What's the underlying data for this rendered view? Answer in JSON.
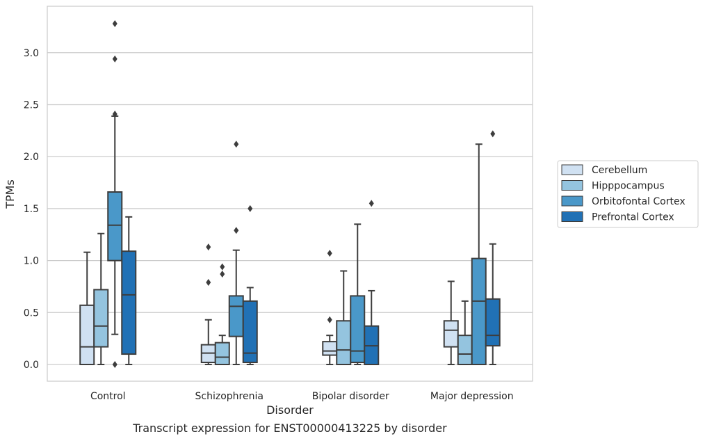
{
  "caption": "Transcript expression for ENST00000413225 by disorder",
  "chart_data": {
    "type": "box",
    "xlabel": "Disorder",
    "ylabel": "TPMs",
    "ylim": [
      -0.16,
      3.46
    ],
    "yticks": [
      0.0,
      0.5,
      1.0,
      1.5,
      2.0,
      2.5,
      3.0
    ],
    "ytick_labels": [
      "0.0",
      "0.5",
      "1.0",
      "1.5",
      "2.0",
      "2.5",
      "3.0"
    ],
    "grid": "horizontal",
    "legend_position": "right",
    "categories": [
      "Control",
      "Schizophrenia",
      "Bipolar disorder",
      "Major depression"
    ],
    "series": [
      {
        "name": "Cerebellum",
        "color": "#d0e1f2",
        "boxes": [
          {
            "whislo": 0.0,
            "q1": 0.0,
            "med": 0.17,
            "q3": 0.57,
            "whishi": 1.08,
            "fliers": []
          },
          {
            "whislo": 0.0,
            "q1": 0.02,
            "med": 0.11,
            "q3": 0.19,
            "whishi": 0.43,
            "fliers": [
              0.79,
              1.13
            ]
          },
          {
            "whislo": 0.0,
            "q1": 0.09,
            "med": 0.13,
            "q3": 0.22,
            "whishi": 0.28,
            "fliers": [
              0.43,
              1.07
            ]
          },
          {
            "whislo": 0.0,
            "q1": 0.17,
            "med": 0.33,
            "q3": 0.42,
            "whishi": 0.8,
            "fliers": []
          }
        ]
      },
      {
        "name": "Hipppocampus",
        "color": "#94c4df",
        "boxes": [
          {
            "whislo": 0.0,
            "q1": 0.17,
            "med": 0.37,
            "q3": 0.72,
            "whishi": 1.26,
            "fliers": []
          },
          {
            "whislo": 0.0,
            "q1": 0.0,
            "med": 0.07,
            "q3": 0.21,
            "whishi": 0.28,
            "fliers": [
              0.87,
              0.94
            ]
          },
          {
            "whislo": 0.0,
            "q1": 0.0,
            "med": 0.14,
            "q3": 0.42,
            "whishi": 0.9,
            "fliers": []
          },
          {
            "whislo": 0.0,
            "q1": 0.0,
            "med": 0.1,
            "q3": 0.28,
            "whishi": 0.61,
            "fliers": []
          }
        ]
      },
      {
        "name": "Orbitofontal Cortex",
        "color": "#4a98c9",
        "boxes": [
          {
            "whislo": 0.29,
            "q1": 1.0,
            "med": 1.34,
            "q3": 1.66,
            "whishi": 2.39,
            "fliers": [
              0.0,
              2.41,
              2.94,
              3.28
            ]
          },
          {
            "whislo": 0.0,
            "q1": 0.27,
            "med": 0.56,
            "q3": 0.66,
            "whishi": 1.1,
            "fliers": [
              1.29,
              2.12
            ]
          },
          {
            "whislo": 0.0,
            "q1": 0.02,
            "med": 0.13,
            "q3": 0.66,
            "whishi": 1.35,
            "fliers": []
          },
          {
            "whislo": 0.0,
            "q1": 0.0,
            "med": 0.61,
            "q3": 1.02,
            "whishi": 2.12,
            "fliers": []
          }
        ]
      },
      {
        "name": "Prefrontal Cortex",
        "color": "#2171b5",
        "boxes": [
          {
            "whislo": 0.0,
            "q1": 0.1,
            "med": 0.67,
            "q3": 1.09,
            "whishi": 1.42,
            "fliers": []
          },
          {
            "whislo": 0.0,
            "q1": 0.02,
            "med": 0.11,
            "q3": 0.61,
            "whishi": 0.74,
            "fliers": [
              1.5
            ]
          },
          {
            "whislo": 0.0,
            "q1": 0.0,
            "med": 0.18,
            "q3": 0.37,
            "whishi": 0.71,
            "fliers": [
              1.55
            ]
          },
          {
            "whislo": 0.0,
            "q1": 0.18,
            "med": 0.28,
            "q3": 0.63,
            "whishi": 1.16,
            "fliers": [
              2.22
            ]
          }
        ]
      }
    ]
  }
}
